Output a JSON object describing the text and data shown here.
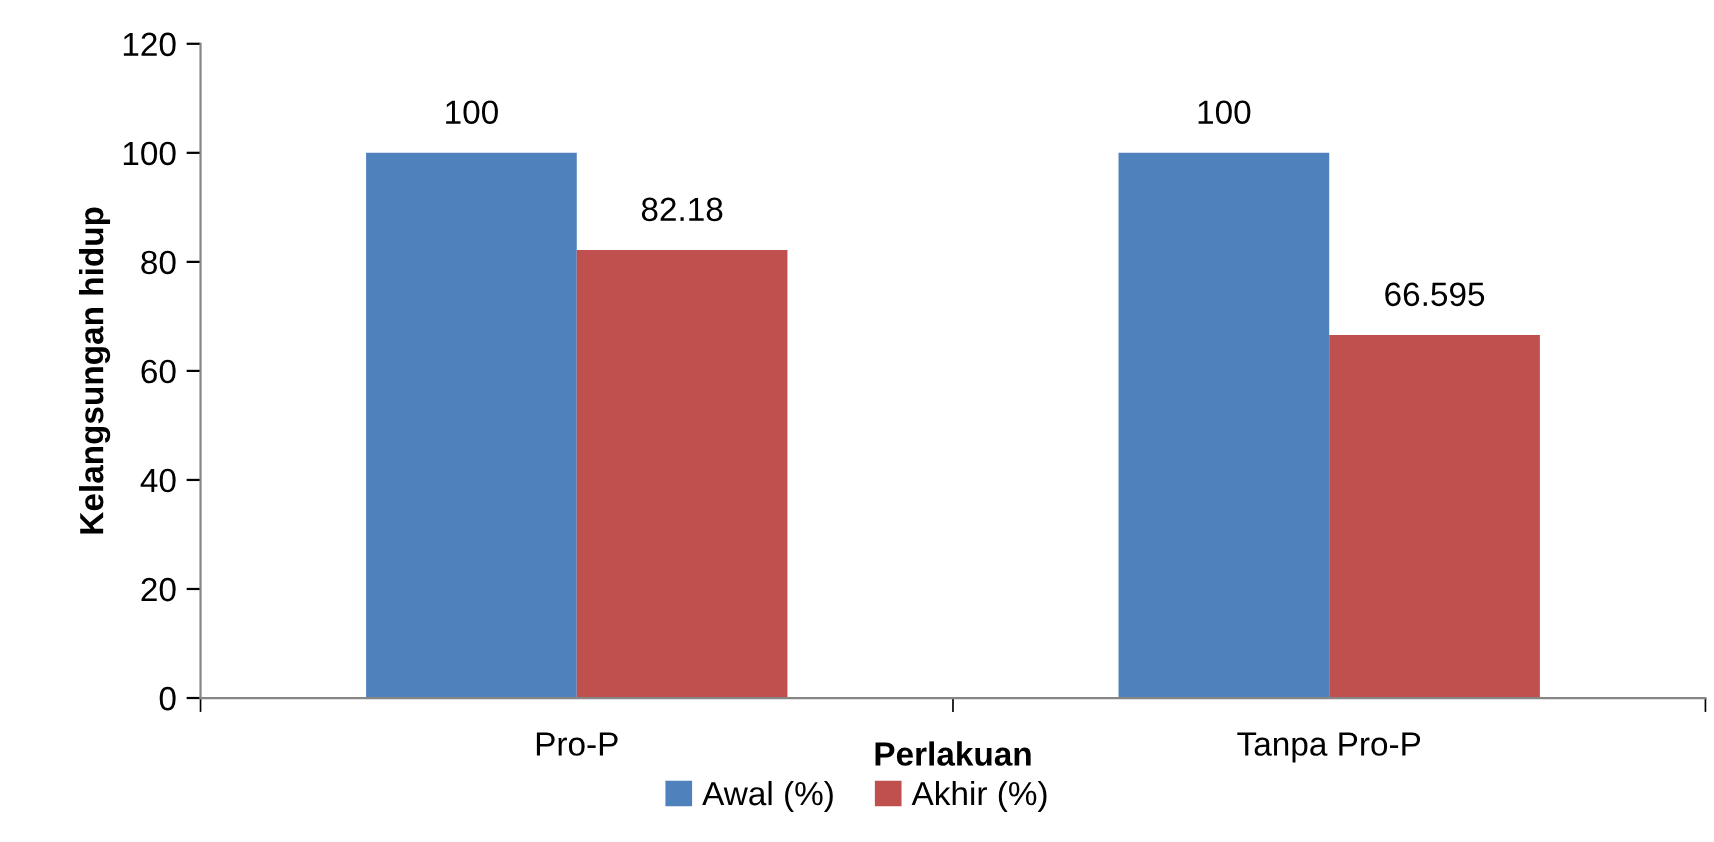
{
  "chart_data": {
    "type": "bar",
    "xlabel": "Perlakuan",
    "ylabel": "Kelangsungan hidup",
    "categories": [
      "Pro-P",
      "Tanpa Pro-P"
    ],
    "series": [
      {
        "name": "Awal (%)",
        "color": "#4f81bd",
        "values": [
          100,
          100
        ]
      },
      {
        "name": "Akhir (%)",
        "color": "#c0504d",
        "values": [
          82.18,
          66.595
        ]
      }
    ],
    "ylim": [
      0,
      120
    ],
    "yticks": [
      0,
      20,
      40,
      60,
      80,
      100,
      120
    ],
    "data_labels": true,
    "legend": "bottom",
    "grid": false
  }
}
